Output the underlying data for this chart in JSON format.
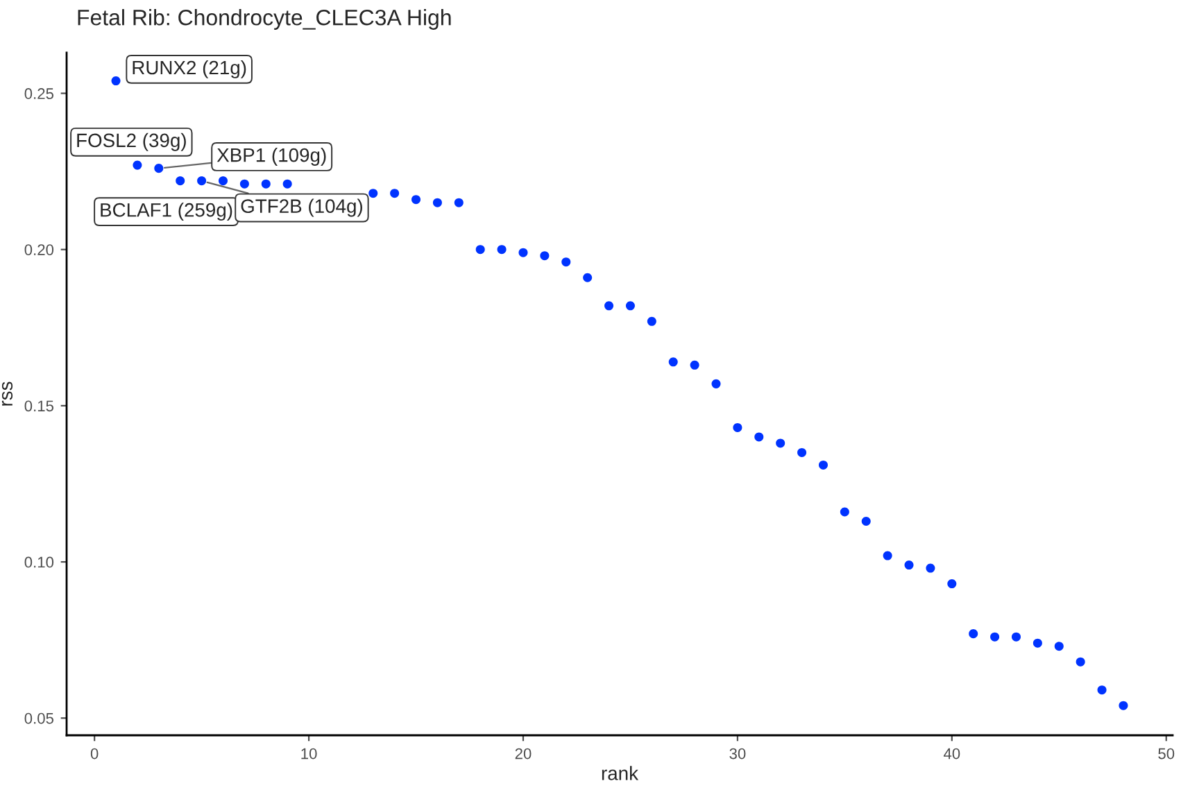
{
  "chart_data": {
    "type": "scatter",
    "title": "Fetal Rib: Chondrocyte_CLEC3A High",
    "xlabel": "rank",
    "ylabel": "rss",
    "x": [
      1,
      2,
      3,
      4,
      5,
      6,
      7,
      8,
      9,
      10,
      11,
      12,
      13,
      14,
      15,
      16,
      17,
      18,
      19,
      20,
      21,
      22,
      23,
      24,
      25,
      26,
      27,
      28,
      29,
      30,
      31,
      32,
      33,
      34,
      35,
      36,
      37,
      38,
      39,
      40,
      41,
      42,
      43,
      44,
      45,
      46,
      47,
      48
    ],
    "series": [
      {
        "color": "#0033ff",
        "values": [
          0.254,
          0.227,
          0.226,
          0.222,
          0.222,
          0.222,
          0.221,
          0.221,
          0.221,
          null,
          null,
          null,
          0.218,
          0.218,
          0.216,
          0.215,
          0.215,
          0.2,
          0.2,
          0.199,
          0.198,
          0.196,
          0.191,
          0.182,
          0.182,
          0.177,
          0.164,
          0.163,
          0.157,
          0.143,
          0.14,
          0.138,
          0.135,
          0.131,
          0.116,
          0.113,
          0.102,
          0.099,
          0.098,
          0.093,
          0.077,
          0.076,
          0.076,
          0.074,
          0.073,
          0.068,
          0.059,
          0.054
        ]
      }
    ],
    "annotations": [
      {
        "text": "RUNX2 (21g)",
        "x": 1,
        "y": 0.254
      },
      {
        "text": "FOSL2 (39g)",
        "x": 2,
        "y": 0.227
      },
      {
        "text": "XBP1 (109g)",
        "x": 3,
        "y": 0.226
      },
      {
        "text": "BCLAF1 (259g)",
        "x": 4,
        "y": 0.222
      },
      {
        "text": "GTF2B (104g)",
        "x": 5,
        "y": 0.222
      }
    ],
    "xlim": [
      -1.3,
      50.3
    ],
    "ylim": [
      0.0445,
      0.263
    ],
    "xticks": [
      0,
      10,
      20,
      30,
      40,
      50
    ],
    "yticks": [
      {
        "value": 0.05,
        "label": "0.05"
      },
      {
        "value": 0.1,
        "label": "0.10"
      },
      {
        "value": 0.15,
        "label": "0.15"
      },
      {
        "value": 0.2,
        "label": "0.20"
      },
      {
        "value": 0.25,
        "label": "0.25"
      }
    ],
    "marker": "circle",
    "grid": false,
    "legend": false
  }
}
